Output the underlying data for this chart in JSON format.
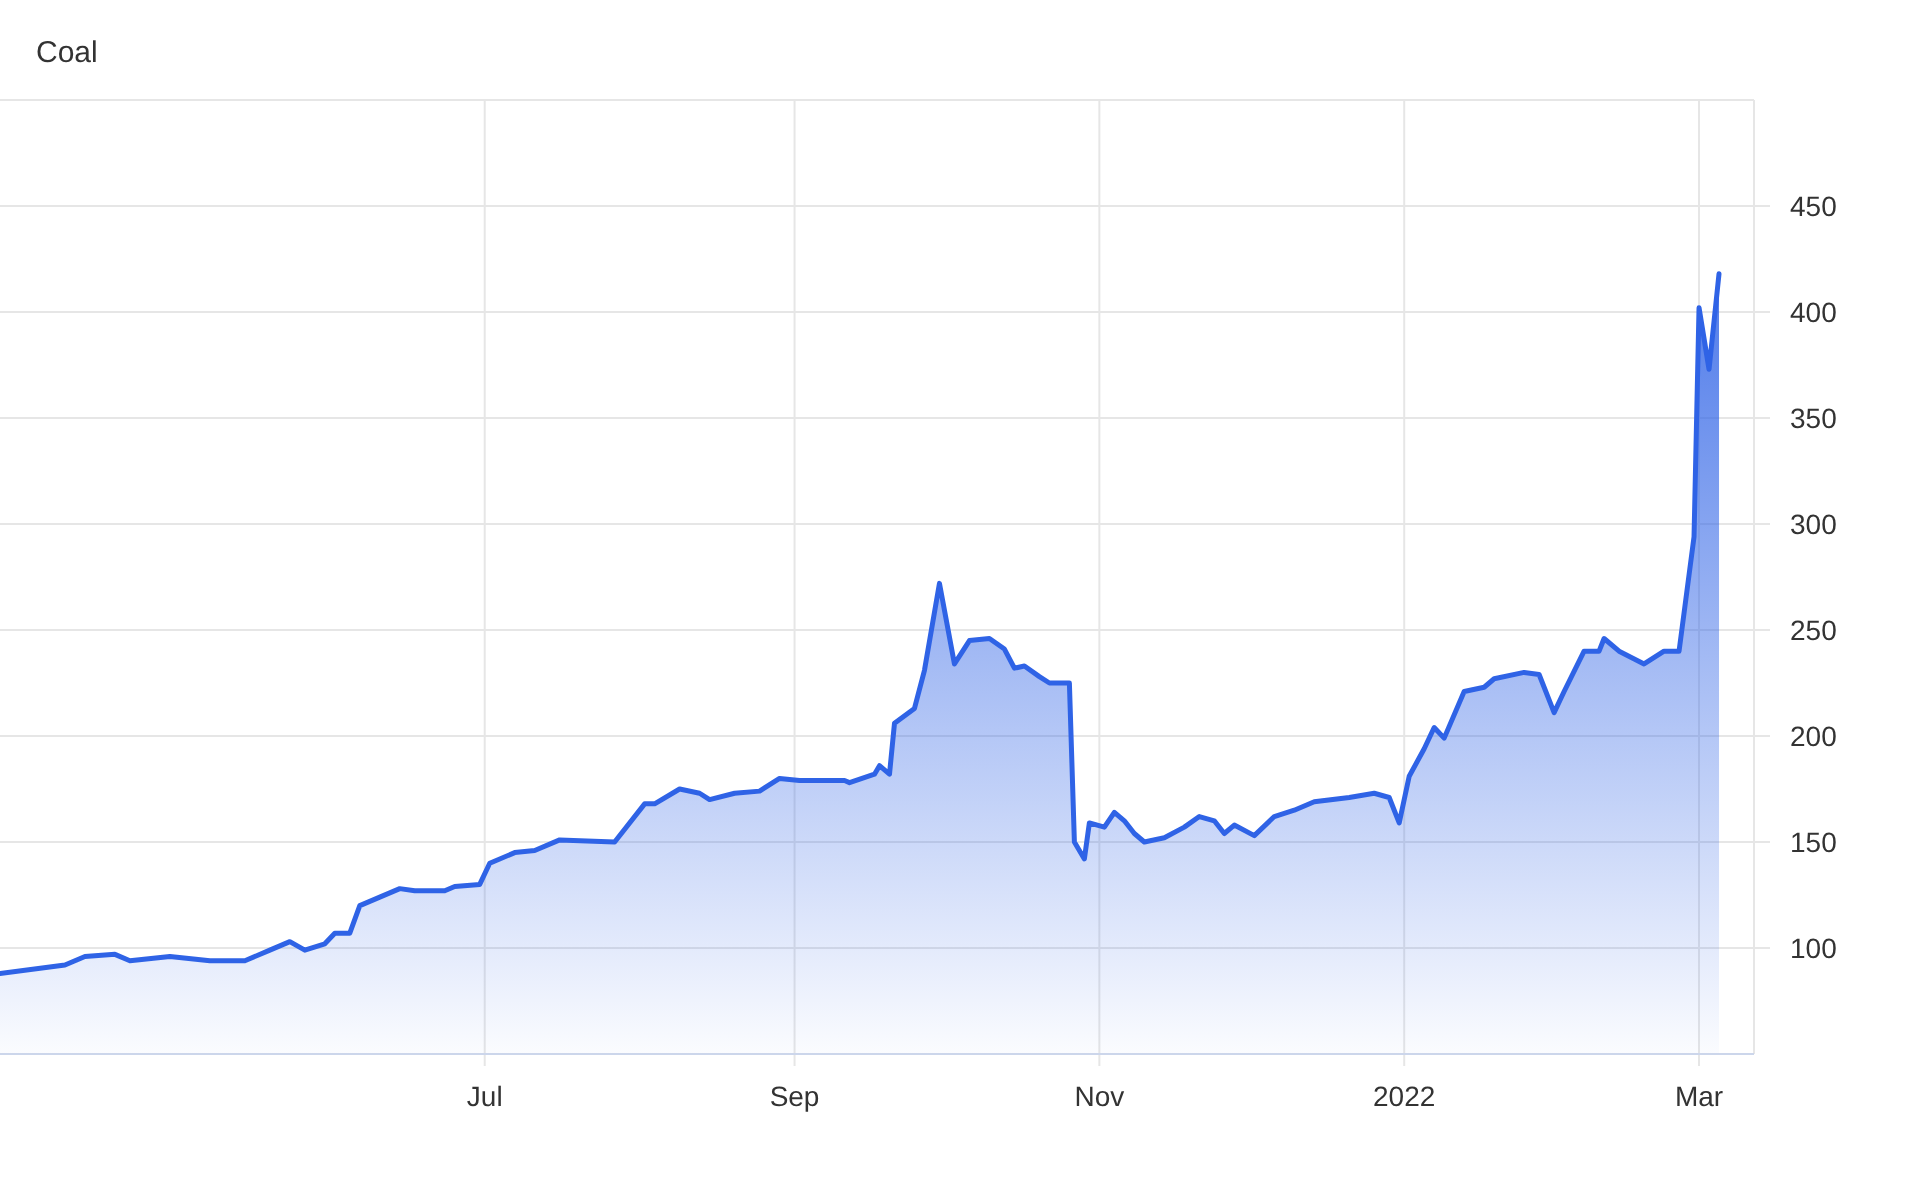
{
  "chart_data": {
    "type": "area",
    "title": "Coal",
    "xlim": [
      "2021-03-26",
      "2022-03-12"
    ],
    "ylim": [
      50,
      500
    ],
    "xticks": [
      {
        "value": "2021-07-01",
        "label": "Jul"
      },
      {
        "value": "2021-09-01",
        "label": "Sep"
      },
      {
        "value": "2021-11-01",
        "label": "Nov"
      },
      {
        "value": "2022-01-01",
        "label": "2022"
      },
      {
        "value": "2022-03-01",
        "label": "Mar"
      }
    ],
    "yticks": [
      100,
      150,
      200,
      250,
      300,
      350,
      400,
      450
    ],
    "grid": true,
    "line_style": "solid",
    "marker": "none",
    "x": [
      "2021-03-26",
      "2021-04-08",
      "2021-04-12",
      "2021-04-18",
      "2021-04-21",
      "2021-04-29",
      "2021-05-07",
      "2021-05-14",
      "2021-05-19",
      "2021-05-23",
      "2021-05-26",
      "2021-05-30",
      "2021-06-01",
      "2021-06-04",
      "2021-06-06",
      "2021-06-10",
      "2021-06-14",
      "2021-06-17",
      "2021-06-23",
      "2021-06-25",
      "2021-06-30",
      "2021-07-02",
      "2021-07-07",
      "2021-07-11",
      "2021-07-16",
      "2021-07-27",
      "2021-08-02",
      "2021-08-04",
      "2021-08-09",
      "2021-08-13",
      "2021-08-15",
      "2021-08-20",
      "2021-08-25",
      "2021-08-29",
      "2021-09-02",
      "2021-09-11",
      "2021-09-12",
      "2021-09-17",
      "2021-09-18",
      "2021-09-20",
      "2021-09-21",
      "2021-09-25",
      "2021-09-27",
      "2021-09-30",
      "2021-10-03",
      "2021-10-06",
      "2021-10-10",
      "2021-10-13",
      "2021-10-15",
      "2021-10-17",
      "2021-10-20",
      "2021-10-22",
      "2021-10-26",
      "2021-10-27",
      "2021-10-29",
      "2021-10-30",
      "2021-11-02",
      "2021-11-04",
      "2021-11-06",
      "2021-11-08",
      "2021-11-10",
      "2021-11-14",
      "2021-11-18",
      "2021-11-21",
      "2021-11-24",
      "2021-11-26",
      "2021-11-28",
      "2021-12-02",
      "2021-12-06",
      "2021-12-10",
      "2021-12-14",
      "2021-12-21",
      "2021-12-26",
      "2021-12-29",
      "2021-12-31",
      "2022-01-02",
      "2022-01-05",
      "2022-01-07",
      "2022-01-09",
      "2022-01-13",
      "2022-01-17",
      "2022-01-19",
      "2022-01-25",
      "2022-01-28",
      "2022-01-31",
      "2022-02-02",
      "2022-02-06",
      "2022-02-09",
      "2022-02-10",
      "2022-02-13",
      "2022-02-18",
      "2022-02-22",
      "2022-02-25",
      "2022-02-28",
      "2022-03-01",
      "2022-03-03",
      "2022-03-05"
    ],
    "series": [
      {
        "color": "#2f63e6",
        "values": [
          88,
          92,
          96,
          97,
          94,
          96,
          94,
          94,
          99,
          103,
          99,
          102,
          107,
          107,
          120,
          124,
          128,
          127,
          127,
          129,
          130,
          140,
          145,
          146,
          151,
          150,
          168,
          168,
          175,
          173,
          170,
          173,
          174,
          180,
          179,
          179,
          178,
          182,
          186,
          182,
          206,
          213,
          231,
          272,
          234,
          245,
          246,
          241,
          232,
          233,
          228,
          225,
          225,
          150,
          142,
          159,
          157,
          164,
          160,
          154,
          150,
          152,
          157,
          162,
          160,
          154,
          158,
          153,
          162,
          165,
          169,
          171,
          173,
          171,
          159,
          181,
          194,
          204,
          199,
          221,
          223,
          227,
          230,
          229,
          211,
          221,
          240,
          240,
          246,
          240,
          234,
          240,
          240,
          294,
          402,
          373,
          418
        ]
      }
    ]
  }
}
